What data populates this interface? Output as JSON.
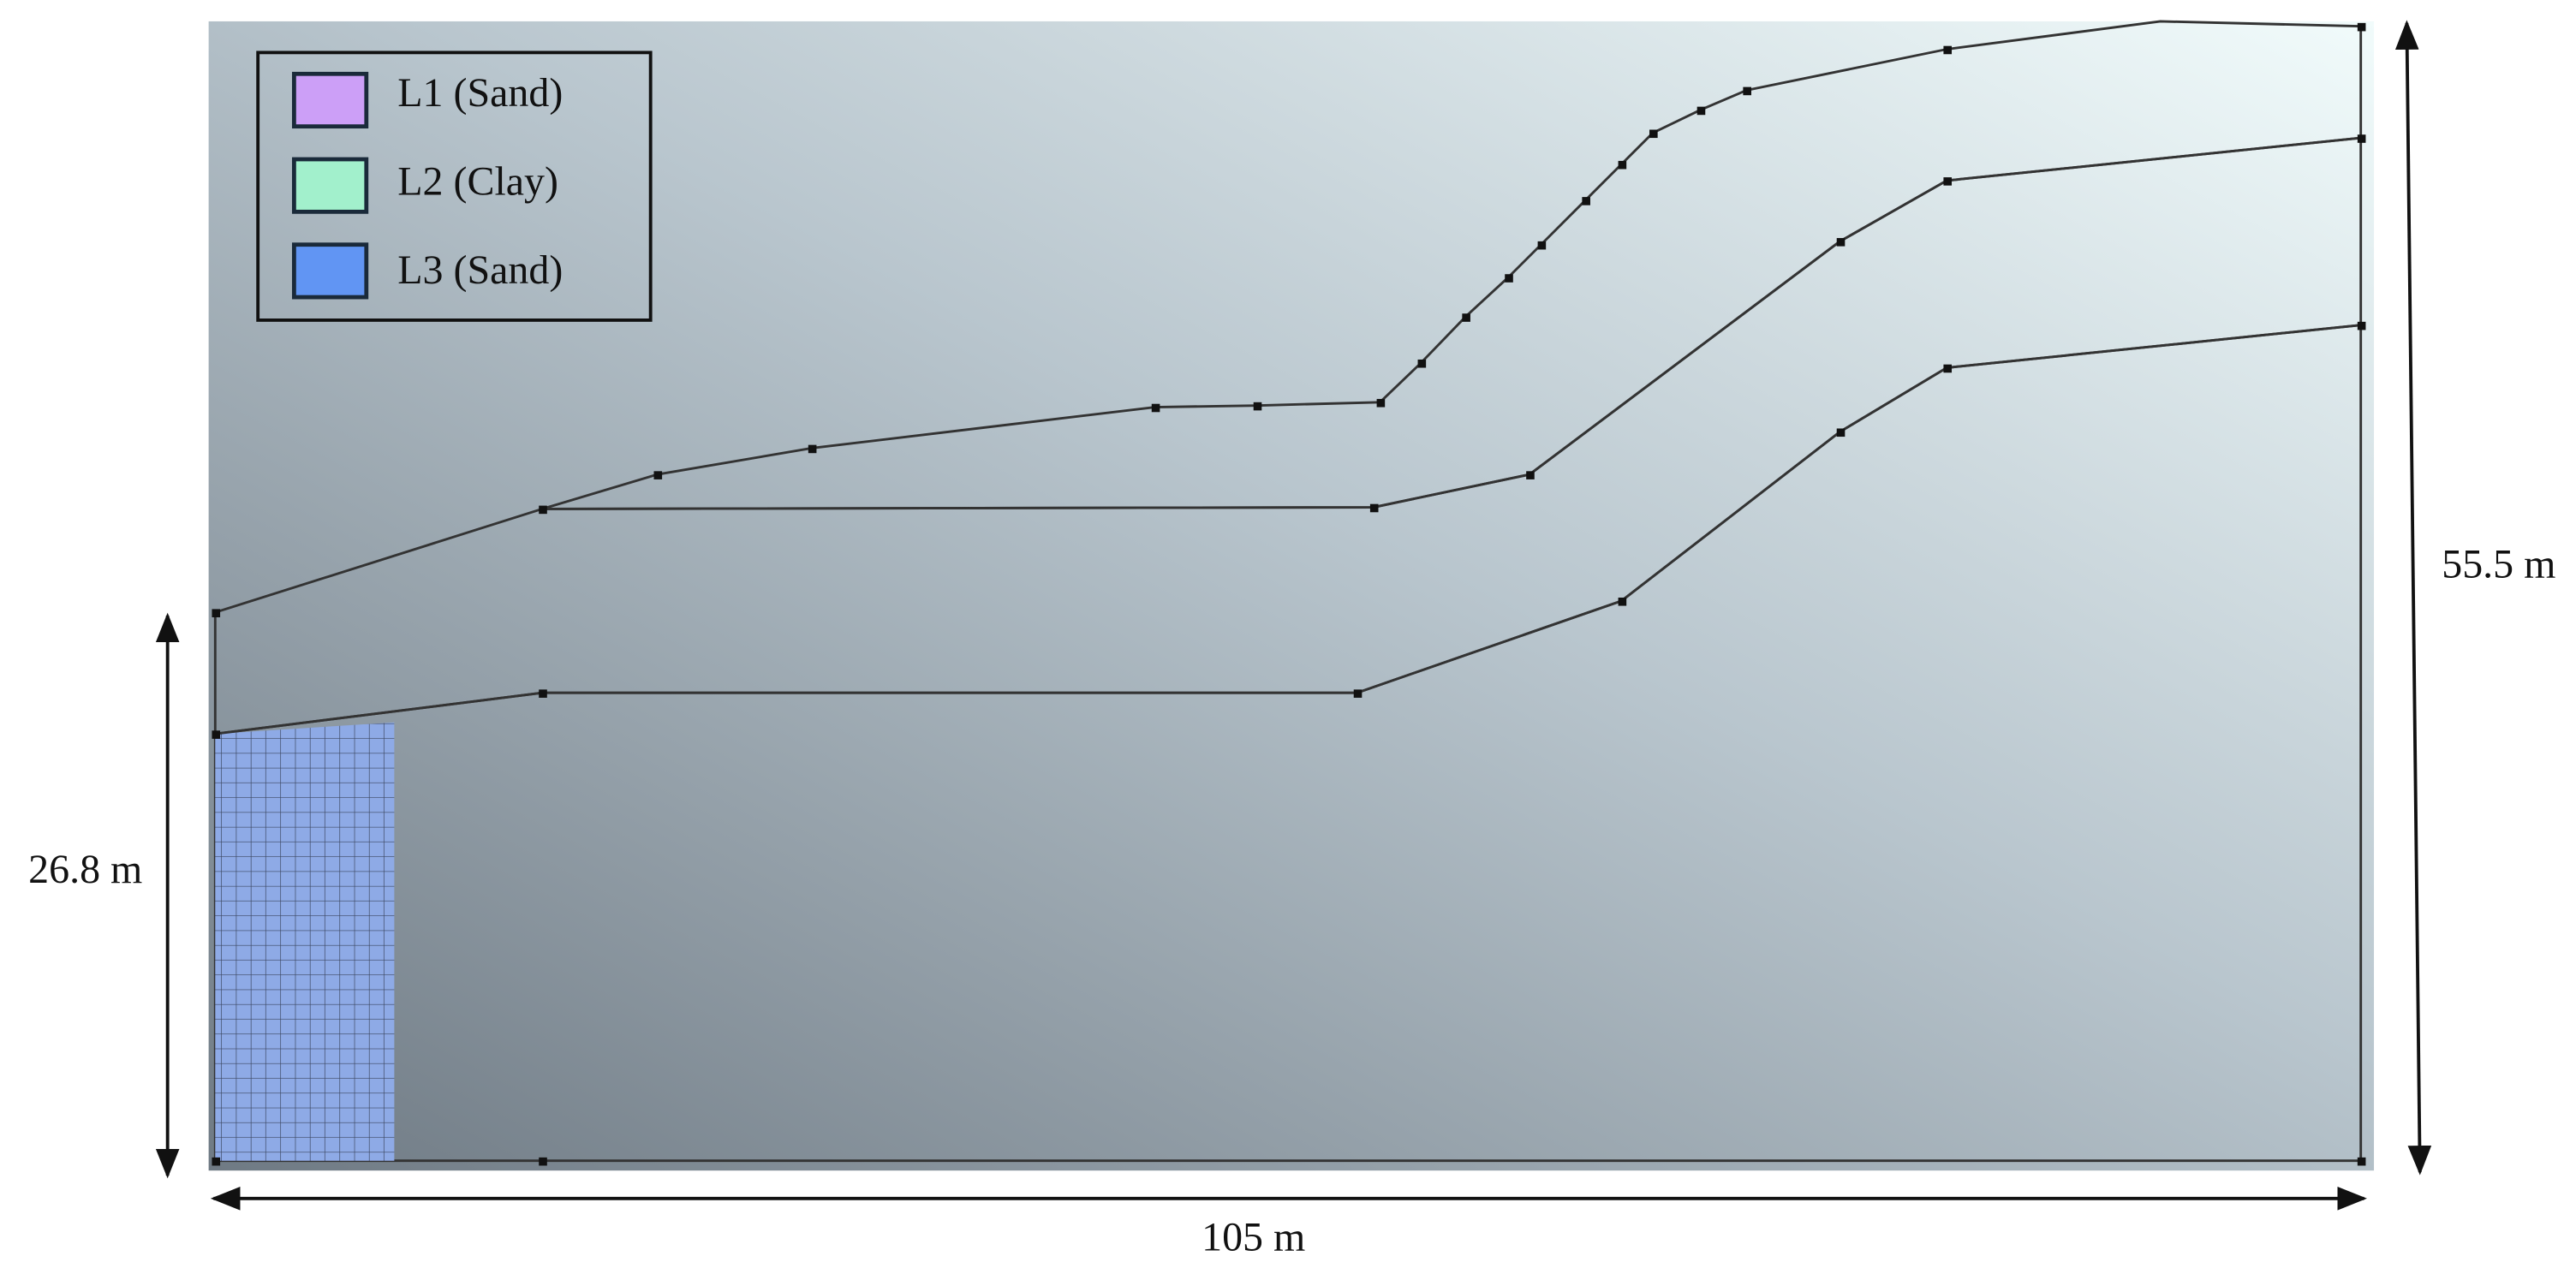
{
  "legend": {
    "items": [
      {
        "label": "L1 (Sand)",
        "color": "#cc9ff7"
      },
      {
        "label": "L2 (Clay)",
        "color": "#a2f0cc"
      },
      {
        "label": "L3 (Sand)",
        "color": "#6195f3"
      }
    ]
  },
  "dimensions": {
    "left_height": "26.8 m",
    "right_height": "55.5 m",
    "width": "105 m"
  }
}
